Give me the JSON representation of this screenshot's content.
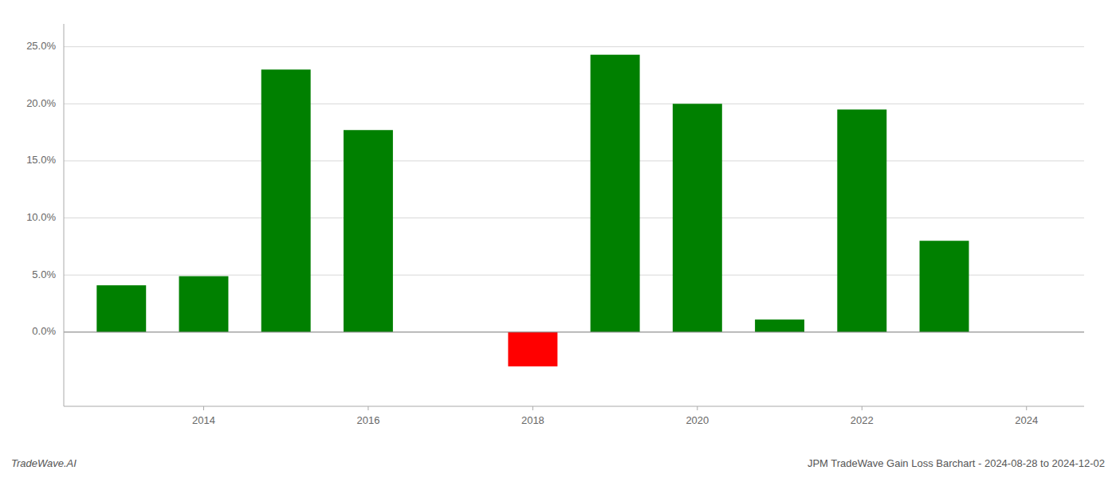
{
  "chart_data": {
    "type": "bar",
    "x": [
      2013,
      2014,
      2015,
      2016,
      2018,
      2019,
      2020,
      2021,
      2022,
      2023
    ],
    "values": [
      0.041,
      0.049,
      0.23,
      0.177,
      -0.03,
      0.243,
      0.2,
      0.011,
      0.195,
      0.08
    ],
    "colors": [
      "#008000",
      "#008000",
      "#008000",
      "#008000",
      "#ff0000",
      "#008000",
      "#008000",
      "#008000",
      "#008000",
      "#008000"
    ],
    "xlim": [
      2012.3,
      2024.7
    ],
    "xticks": [
      2014,
      2016,
      2018,
      2020,
      2022,
      2024
    ],
    "ylim": [
      -0.065,
      0.27
    ],
    "yticks": [
      {
        "value": 0.0,
        "label": "0.0%"
      },
      {
        "value": 0.05,
        "label": "5.0%"
      },
      {
        "value": 0.1,
        "label": "10.0%"
      },
      {
        "value": 0.15,
        "label": "15.0%"
      },
      {
        "value": 0.2,
        "label": "20.0%"
      },
      {
        "value": 0.25,
        "label": "25.0%"
      }
    ],
    "grid": true,
    "annotations": [
      "TradeWave.AI",
      "JPM TradeWave Gain Loss Barchart - 2024-08-28 to 2024-12-02"
    ]
  }
}
